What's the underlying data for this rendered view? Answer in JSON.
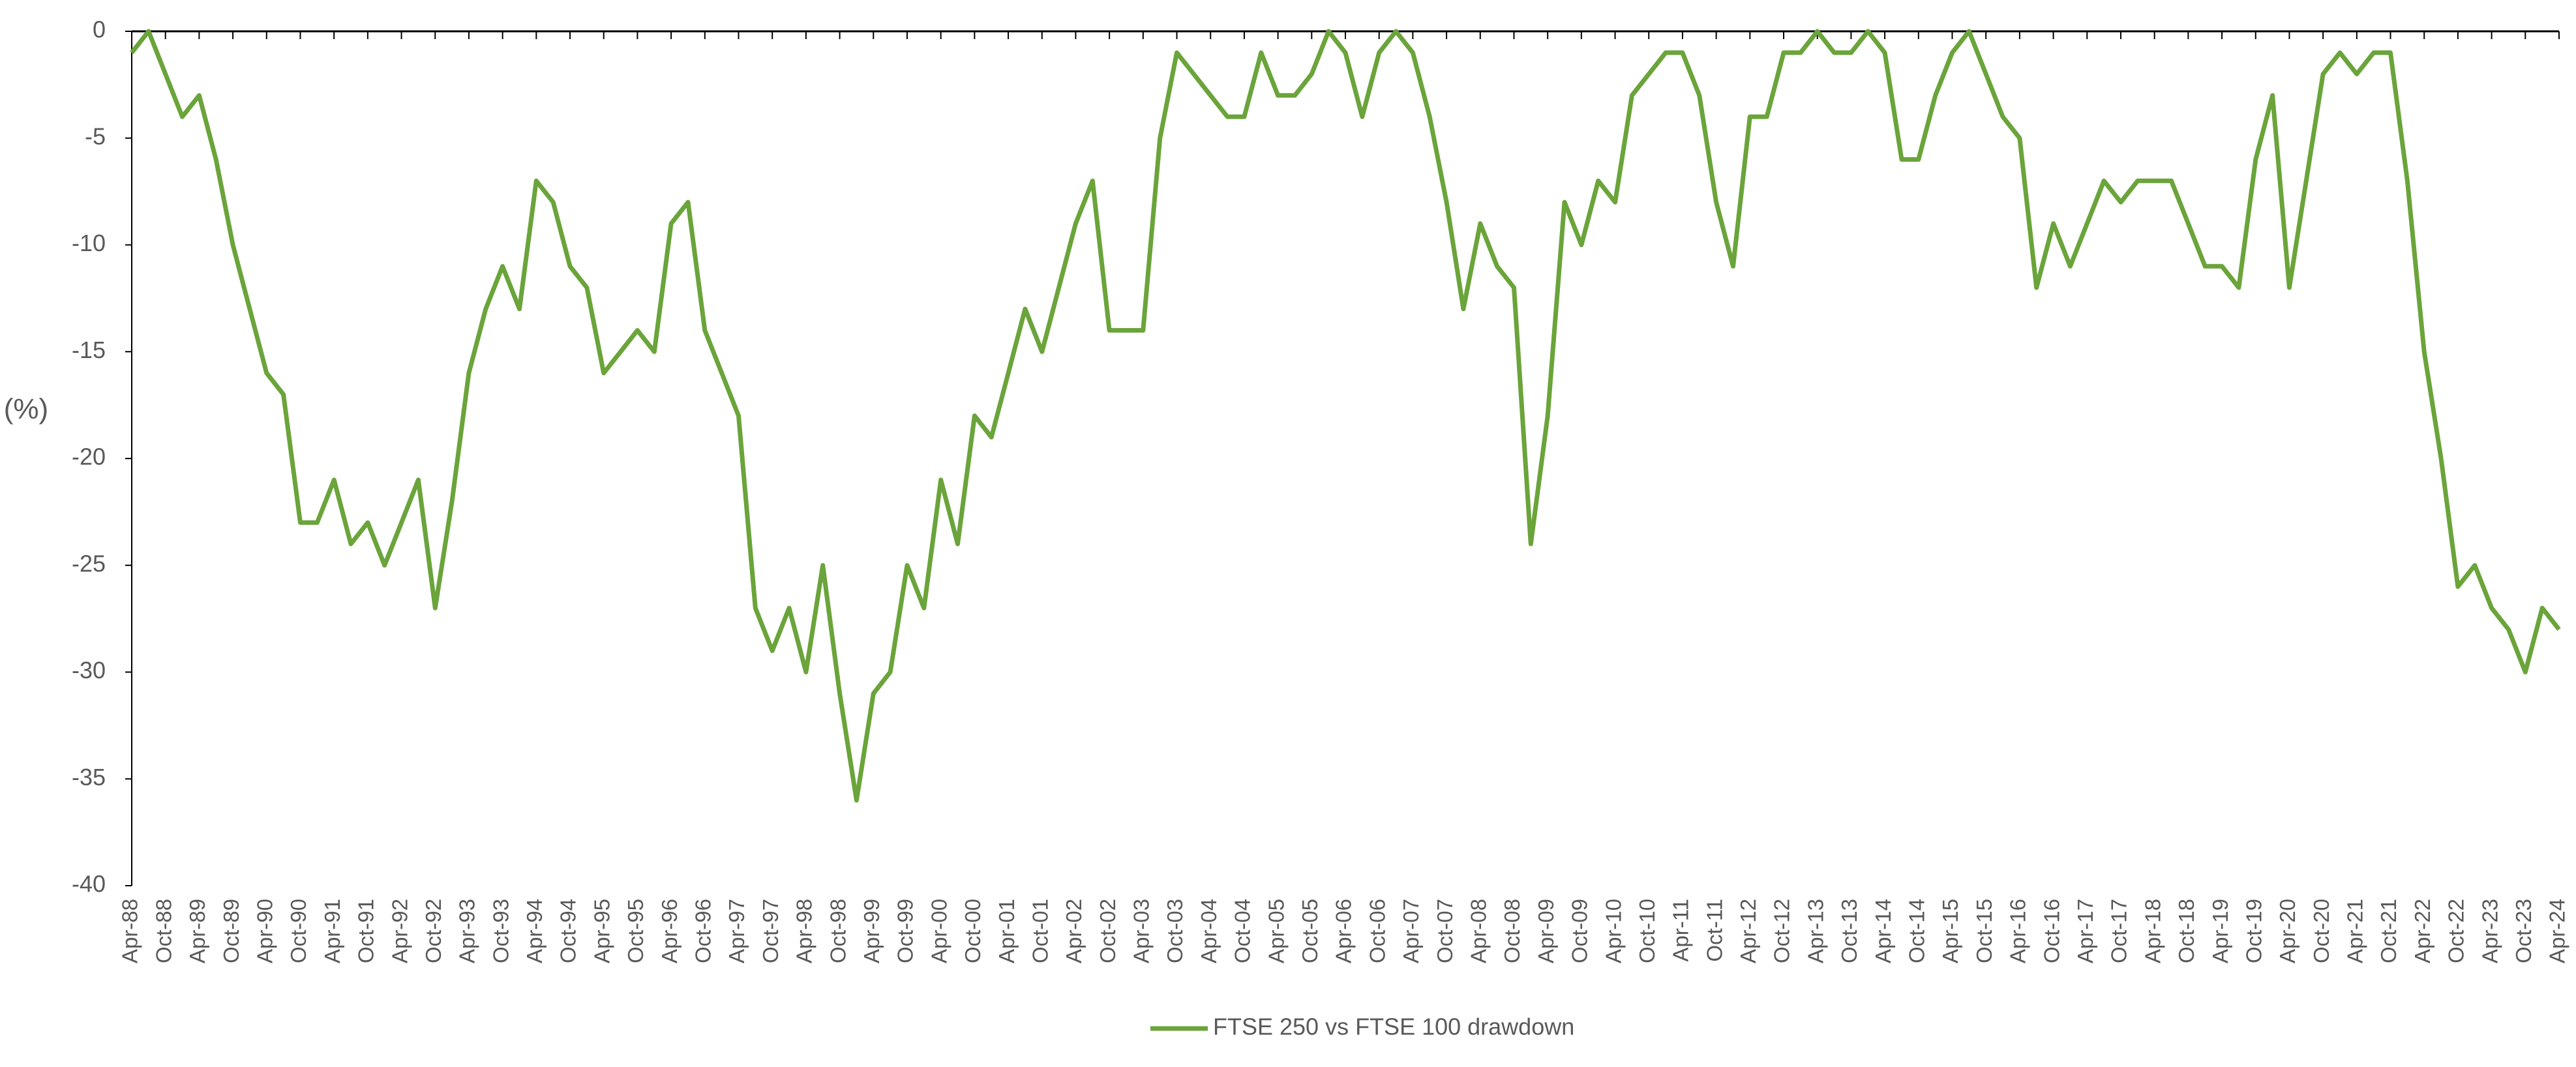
{
  "chart_data": {
    "type": "line",
    "y_label": "(%)",
    "categories": [
      "Apr-88",
      null,
      "Oct-88",
      null,
      "Apr-89",
      null,
      "Oct-89",
      null,
      "Apr-90",
      null,
      "Oct-90",
      null,
      "Apr-91",
      null,
      "Oct-91",
      null,
      "Apr-92",
      null,
      "Oct-92",
      null,
      "Apr-93",
      null,
      "Oct-93",
      null,
      "Apr-94",
      null,
      "Oct-94",
      null,
      "Apr-95",
      null,
      "Oct-95",
      null,
      "Apr-96",
      null,
      "Oct-96",
      null,
      "Apr-97",
      null,
      "Oct-97",
      null,
      "Apr-98",
      null,
      "Oct-98",
      null,
      "Apr-99",
      null,
      "Oct-99",
      null,
      "Apr-00",
      null,
      "Oct-00",
      null,
      "Apr-01",
      null,
      "Oct-01",
      null,
      "Apr-02",
      null,
      "Oct-02",
      null,
      "Apr-03",
      null,
      "Oct-03",
      null,
      "Apr-04",
      null,
      "Oct-04",
      null,
      "Apr-05",
      null,
      "Oct-05",
      null,
      "Apr-06",
      null,
      "Oct-06",
      null,
      "Apr-07",
      null,
      "Oct-07",
      null,
      "Apr-08",
      null,
      "Oct-08",
      null,
      "Apr-09",
      null,
      "Oct-09",
      null,
      "Apr-10",
      null,
      "Oct-10",
      null,
      "Apr-11",
      null,
      "Oct-11",
      null,
      "Apr-12",
      null,
      "Oct-12",
      null,
      "Apr-13",
      null,
      "Oct-13",
      null,
      "Apr-14",
      null,
      "Oct-14",
      null,
      "Apr-15",
      null,
      "Oct-15",
      null,
      "Apr-16",
      null,
      "Oct-16",
      null,
      "Apr-17",
      null,
      "Oct-17",
      null,
      "Apr-18",
      null,
      "Oct-18",
      null,
      "Apr-19",
      null,
      "Oct-19",
      null,
      "Apr-20",
      null,
      "Oct-20",
      null,
      "Apr-21",
      null,
      "Oct-21",
      null,
      "Apr-22",
      null,
      "Oct-22",
      null,
      "Apr-23",
      null,
      "Oct-23",
      null,
      "Apr-24"
    ],
    "series": [
      {
        "name": "FTSE 250 vs FTSE 100 drawdown",
        "color": "#6aa43a",
        "values": [
          -1,
          0,
          -2,
          -4,
          -3,
          -6,
          -10,
          -13,
          -16,
          -17,
          -23,
          -23,
          -21,
          -24,
          -23,
          -25,
          -23,
          -21,
          -27,
          -22,
          -16,
          -13,
          -11,
          -13,
          -7,
          -8,
          -11,
          -12,
          -16,
          -15,
          -14,
          -15,
          -9,
          -8,
          -14,
          -16,
          -18,
          -27,
          -29,
          -27,
          -30,
          -25,
          -31,
          -36,
          -31,
          -30,
          -25,
          -27,
          -21,
          -24,
          -18,
          -19,
          -16,
          -13,
          -15,
          -12,
          -9,
          -7,
          -14,
          -14,
          -14,
          -5,
          -1,
          -2,
          -3,
          -4,
          -4,
          -1,
          -3,
          -3,
          -2,
          0,
          -1,
          -4,
          -1,
          0,
          -1,
          -4,
          -8,
          -13,
          -9,
          -11,
          -12,
          -24,
          -18,
          -8,
          -10,
          -7,
          -8,
          -3,
          -2,
          -1,
          -1,
          -3,
          -8,
          -11,
          -4,
          -4,
          -1,
          -1,
          0,
          -1,
          -1,
          0,
          -1,
          -6,
          -6,
          -3,
          -1,
          0,
          -2,
          -4,
          -5,
          -12,
          -9,
          -11,
          -9,
          -7,
          -8,
          -7,
          -7,
          -7,
          -9,
          -11,
          -11,
          -12,
          -6,
          -3,
          -12,
          -7,
          -2,
          -1,
          -2,
          -1,
          -1,
          -7,
          -15,
          -20,
          -26,
          -25,
          -27,
          -28,
          -30,
          -27,
          -28
        ]
      }
    ],
    "ylim": [
      -40,
      0
    ],
    "yticks": [
      0,
      -5,
      -10,
      -15,
      -20,
      -25,
      -30,
      -35,
      -40
    ],
    "legend": "bottom"
  }
}
